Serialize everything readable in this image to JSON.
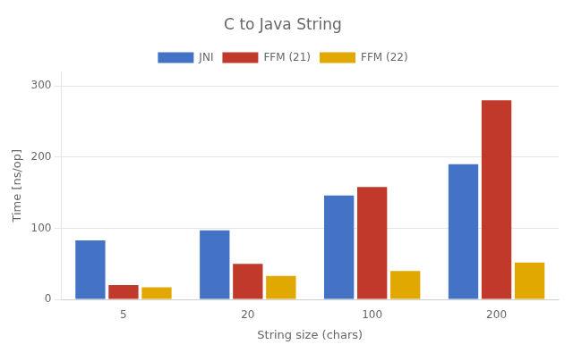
{
  "chart_data": {
    "type": "bar",
    "title": "C to Java String",
    "xlabel": "String size (chars)",
    "ylabel": "Time [ns/op]",
    "categories": [
      "5",
      "20",
      "100",
      "200"
    ],
    "series": [
      {
        "name": "JNI",
        "color": "#4472C4",
        "values": [
          83,
          97,
          146,
          190
        ]
      },
      {
        "name": "FFM (21)",
        "color": "#C0392B",
        "values": [
          20,
          50,
          158,
          280
        ]
      },
      {
        "name": "FFM (22)",
        "color": "#E0A800",
        "values": [
          17,
          33,
          40,
          52
        ]
      }
    ],
    "ylim": [
      0,
      320
    ],
    "yticks": [
      0,
      100,
      200,
      300
    ],
    "grid": true,
    "legend": "top"
  }
}
